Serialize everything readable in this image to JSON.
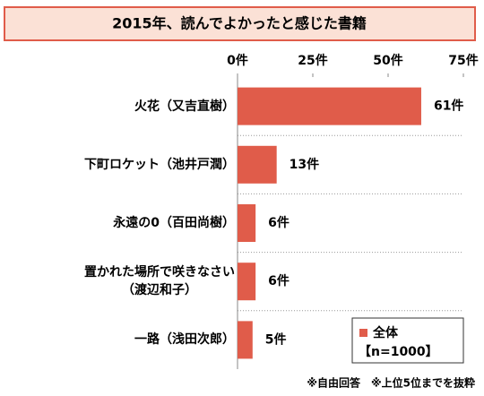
{
  "chart_data": {
    "type": "bar",
    "orientation": "horizontal",
    "title": "2015年、読んでよかったと感じた書籍",
    "categories": [
      "火花（又吉直樹）",
      "下町ロケット（池井戸潤）",
      "永遠の0（百田尚樹）",
      "置かれた場所で咲きなさい\n（渡辺和子）",
      "一路（浅田次郎）"
    ],
    "series": [
      {
        "name": "全体",
        "color": "#e05c4a",
        "values": [
          61,
          13,
          6,
          6,
          5
        ],
        "value_labels": [
          "61件",
          "13件",
          "6件",
          "6件",
          "5件"
        ]
      }
    ],
    "legend_note": "【n=1000】",
    "xlim": [
      0,
      75
    ],
    "xticks": [
      {
        "value": 0,
        "label": "0件"
      },
      {
        "value": 25,
        "label": "25件"
      },
      {
        "value": 50,
        "label": "50件"
      },
      {
        "value": 75,
        "label": "75件"
      }
    ],
    "grid": false,
    "legend": "lower right",
    "footnote": "※自由回答　※上位5位までを抜粋"
  }
}
